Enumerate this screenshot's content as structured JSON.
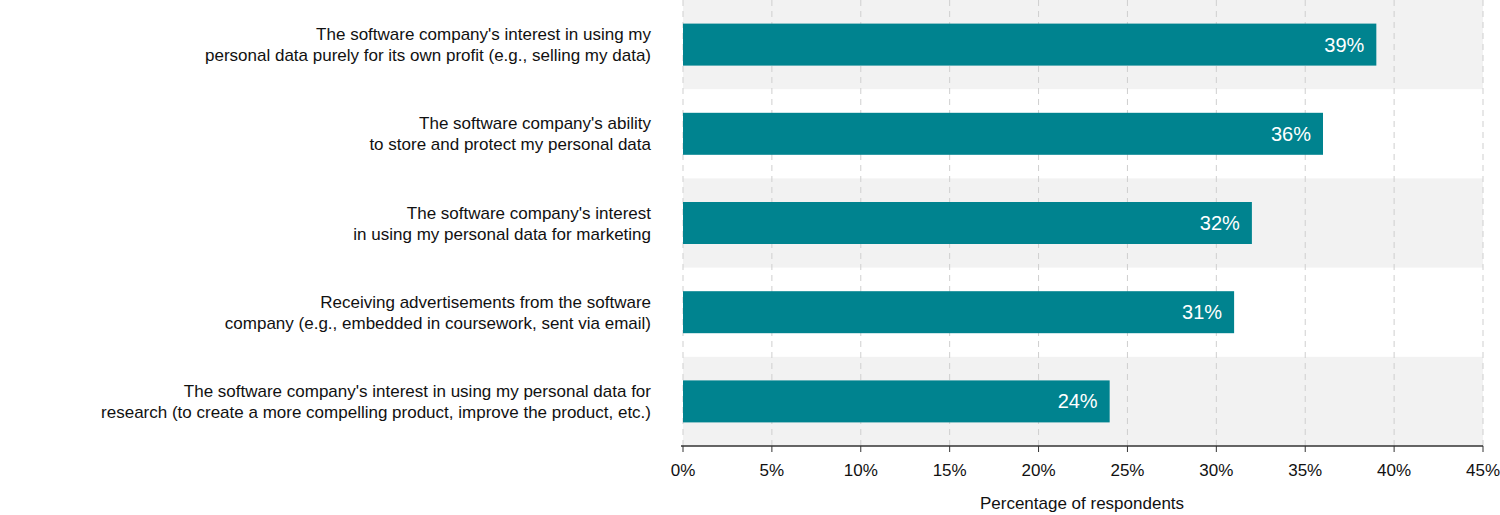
{
  "chart_data": {
    "type": "bar",
    "orientation": "horizontal",
    "categories": [
      "The software company's interest in using my\npersonal data purely for its own profit (e.g., selling my data)",
      "The software company's ability\nto store and protect my personal data",
      "The software company's interest\nin using my personal data for marketing",
      "Receiving advertisements from the software\ncompany (e.g., embedded in coursework, sent via email)",
      "The software company's interest in using my personal data for\nresearch (to create a more compelling product, improve the product, etc.)"
    ],
    "values": [
      39,
      36,
      32,
      31,
      24
    ],
    "value_labels": [
      "39%",
      "36%",
      "32%",
      "31%",
      "24%"
    ],
    "color": "#00838f",
    "x_label": "Percentage of respondents",
    "xlim": [
      0,
      45
    ],
    "xticks": [
      {
        "value": 0,
        "label": "0%"
      },
      {
        "value": 5,
        "label": "5%"
      },
      {
        "value": 10,
        "label": "10%"
      },
      {
        "value": 15,
        "label": "15%"
      },
      {
        "value": 20,
        "label": "20%"
      },
      {
        "value": 25,
        "label": "25%"
      },
      {
        "value": 30,
        "label": "30%"
      },
      {
        "value": 35,
        "label": "35%"
      },
      {
        "value": 40,
        "label": "40%"
      },
      {
        "value": 45,
        "label": "45%"
      }
    ],
    "grid": true,
    "data_labels": true
  }
}
